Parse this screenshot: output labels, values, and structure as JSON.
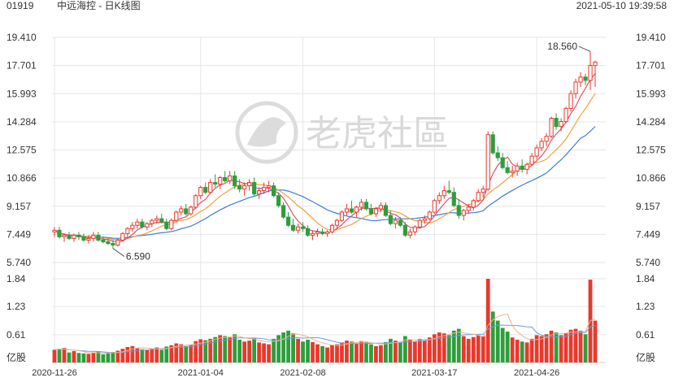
{
  "header": {
    "code": "01919",
    "title": "中远海控 - 日K线图",
    "timestamp": "2021-05-10 19:39:58"
  },
  "watermark": {
    "text": "老虎社區"
  },
  "colors": {
    "up": "#e8392c",
    "down": "#2e9e3c",
    "ma5": "#e0506e",
    "ma10": "#f0a23c",
    "ma20": "#3b7dd8",
    "grid": "#e6e6e6",
    "vol_ma": "#f2b08a"
  },
  "chart_data": {
    "type": "candlestick",
    "price_axis": {
      "ticks": [
        "19.410",
        "17.701",
        "15.993",
        "14.284",
        "12.575",
        "10.866",
        "9.157",
        "7.449",
        "5.740"
      ],
      "range": [
        5.74,
        19.41
      ]
    },
    "volume_axis": {
      "ticks": [
        "1.84",
        "1.23",
        "0.61"
      ],
      "unit": "亿股",
      "range": [
        0,
        1.84
      ]
    },
    "date_labels": [
      "2020-11-26",
      "2021-01-04",
      "2021-02-08",
      "2021-03-17",
      "2021-04-26"
    ],
    "annotations": {
      "high": "18.560",
      "low": "6.590"
    },
    "candles": [
      [
        7.6,
        7.9,
        7.3,
        7.7,
        0.28,
        "2020-11-26"
      ],
      [
        7.7,
        7.9,
        7.2,
        7.3,
        0.3,
        ""
      ],
      [
        7.3,
        7.5,
        7.0,
        7.4,
        0.32,
        ""
      ],
      [
        7.4,
        7.6,
        7.1,
        7.2,
        0.22,
        ""
      ],
      [
        7.2,
        7.5,
        7.0,
        7.4,
        0.25,
        ""
      ],
      [
        7.4,
        7.6,
        7.1,
        7.3,
        0.21,
        ""
      ],
      [
        7.3,
        7.5,
        7.0,
        7.1,
        0.2,
        ""
      ],
      [
        7.1,
        7.4,
        6.9,
        7.2,
        0.19,
        ""
      ],
      [
        7.2,
        7.6,
        7.0,
        7.4,
        0.22,
        ""
      ],
      [
        7.4,
        7.6,
        7.0,
        7.1,
        0.24,
        ""
      ],
      [
        7.1,
        7.3,
        6.9,
        7.0,
        0.18,
        ""
      ],
      [
        7.0,
        7.2,
        6.8,
        6.9,
        0.2,
        ""
      ],
      [
        6.9,
        7.1,
        6.6,
        6.8,
        0.23,
        ""
      ],
      [
        6.8,
        7.2,
        6.7,
        7.1,
        0.26,
        ""
      ],
      [
        7.1,
        7.6,
        7.0,
        7.5,
        0.3,
        ""
      ],
      [
        7.5,
        7.9,
        7.3,
        7.8,
        0.34,
        ""
      ],
      [
        7.8,
        8.2,
        7.6,
        8.0,
        0.36,
        ""
      ],
      [
        8.0,
        8.4,
        7.8,
        8.2,
        0.32,
        ""
      ],
      [
        8.2,
        8.4,
        7.8,
        7.9,
        0.29,
        ""
      ],
      [
        7.9,
        8.2,
        7.7,
        8.1,
        0.27,
        ""
      ],
      [
        8.1,
        8.4,
        7.9,
        8.3,
        0.3,
        ""
      ],
      [
        8.3,
        8.6,
        8.1,
        8.4,
        0.33,
        ""
      ],
      [
        8.4,
        8.7,
        8.1,
        8.2,
        0.28,
        ""
      ],
      [
        8.2,
        8.4,
        7.7,
        7.8,
        0.35,
        ""
      ],
      [
        7.8,
        8.4,
        7.7,
        8.3,
        0.38,
        ""
      ],
      [
        8.3,
        8.9,
        8.2,
        8.8,
        0.42,
        ""
      ],
      [
        8.8,
        9.2,
        8.6,
        9.0,
        0.4,
        ""
      ],
      [
        9.0,
        9.3,
        8.6,
        8.7,
        0.36,
        ""
      ],
      [
        8.7,
        9.2,
        8.6,
        9.1,
        0.39,
        ""
      ],
      [
        9.1,
        9.9,
        9.0,
        9.8,
        0.47,
        ""
      ],
      [
        9.8,
        10.4,
        9.6,
        10.3,
        0.51,
        "2021-01-04"
      ],
      [
        10.3,
        10.6,
        9.9,
        10.0,
        0.49,
        ""
      ],
      [
        10.0,
        10.8,
        9.9,
        10.6,
        0.52,
        ""
      ],
      [
        10.6,
        11.1,
        10.3,
        10.5,
        0.56,
        ""
      ],
      [
        10.5,
        11.0,
        10.2,
        10.9,
        0.6,
        ""
      ],
      [
        10.9,
        11.3,
        10.6,
        10.7,
        0.58,
        ""
      ],
      [
        10.7,
        11.3,
        10.5,
        11.0,
        0.55,
        ""
      ],
      [
        11.0,
        11.3,
        10.2,
        10.4,
        0.62,
        ""
      ],
      [
        10.4,
        10.8,
        10.0,
        10.2,
        0.5,
        ""
      ],
      [
        10.2,
        10.6,
        9.8,
        10.4,
        0.46,
        ""
      ],
      [
        10.4,
        10.8,
        10.1,
        10.6,
        0.48,
        ""
      ],
      [
        10.6,
        10.9,
        9.8,
        9.9,
        0.54,
        ""
      ],
      [
        9.9,
        10.3,
        9.6,
        10.1,
        0.44,
        ""
      ],
      [
        10.1,
        10.6,
        9.9,
        10.3,
        0.42,
        ""
      ],
      [
        10.3,
        10.7,
        10.0,
        10.4,
        0.4,
        ""
      ],
      [
        10.4,
        10.6,
        9.7,
        9.8,
        0.52,
        ""
      ],
      [
        9.8,
        10.0,
        9.1,
        9.2,
        0.6,
        ""
      ],
      [
        9.2,
        9.4,
        8.4,
        8.5,
        0.66,
        ""
      ],
      [
        8.5,
        8.8,
        7.9,
        8.0,
        0.7,
        ""
      ],
      [
        8.0,
        8.4,
        7.6,
        7.7,
        0.64,
        ""
      ],
      [
        7.7,
        8.1,
        7.5,
        7.9,
        0.52,
        ""
      ],
      [
        7.9,
        8.2,
        7.6,
        7.8,
        0.46,
        "2021-02-08"
      ],
      [
        7.8,
        8.0,
        7.3,
        7.4,
        0.5,
        ""
      ],
      [
        7.4,
        7.7,
        7.1,
        7.5,
        0.45,
        ""
      ],
      [
        7.5,
        7.8,
        7.3,
        7.6,
        0.4,
        ""
      ],
      [
        7.6,
        7.8,
        7.4,
        7.5,
        0.36,
        ""
      ],
      [
        7.5,
        7.7,
        7.3,
        7.6,
        0.33,
        ""
      ],
      [
        7.6,
        8.1,
        7.5,
        8.0,
        0.38,
        ""
      ],
      [
        8.0,
        8.4,
        7.8,
        8.3,
        0.4,
        ""
      ],
      [
        8.3,
        8.9,
        8.2,
        8.8,
        0.44,
        ""
      ],
      [
        8.8,
        9.3,
        8.6,
        9.0,
        0.48,
        ""
      ],
      [
        9.0,
        9.5,
        8.7,
        8.8,
        0.46,
        ""
      ],
      [
        8.8,
        9.2,
        8.5,
        9.1,
        0.42,
        ""
      ],
      [
        9.1,
        9.6,
        8.9,
        9.4,
        0.47,
        ""
      ],
      [
        9.4,
        9.6,
        8.9,
        9.0,
        0.44,
        ""
      ],
      [
        9.0,
        9.3,
        8.6,
        8.7,
        0.4,
        ""
      ],
      [
        8.7,
        9.1,
        8.5,
        9.0,
        0.36,
        ""
      ],
      [
        9.0,
        9.4,
        8.8,
        9.2,
        0.38,
        ""
      ],
      [
        9.2,
        9.4,
        8.5,
        8.6,
        0.45,
        ""
      ],
      [
        8.6,
        8.9,
        8.0,
        8.1,
        0.52,
        ""
      ],
      [
        8.1,
        8.5,
        7.8,
        8.3,
        0.48,
        ""
      ],
      [
        8.3,
        8.5,
        7.9,
        8.0,
        0.44,
        ""
      ],
      [
        8.0,
        8.2,
        7.3,
        7.4,
        0.58,
        ""
      ],
      [
        7.4,
        7.8,
        7.2,
        7.6,
        0.5,
        ""
      ],
      [
        7.6,
        8.0,
        7.4,
        7.9,
        0.46,
        ""
      ],
      [
        7.9,
        8.4,
        7.8,
        8.3,
        0.52,
        ""
      ],
      [
        8.3,
        8.6,
        8.1,
        8.4,
        0.48,
        ""
      ],
      [
        8.4,
        8.9,
        8.3,
        8.8,
        0.55,
        ""
      ],
      [
        8.8,
        9.6,
        8.7,
        9.5,
        0.62,
        "2021-03-17"
      ],
      [
        9.5,
        10.0,
        9.3,
        9.8,
        0.66,
        ""
      ],
      [
        9.8,
        10.4,
        9.6,
        10.1,
        0.64,
        ""
      ],
      [
        10.1,
        10.7,
        9.9,
        10.0,
        0.6,
        ""
      ],
      [
        10.0,
        10.3,
        9.1,
        9.2,
        0.7,
        ""
      ],
      [
        9.2,
        9.6,
        8.4,
        8.6,
        0.74,
        ""
      ],
      [
        8.6,
        9.0,
        8.3,
        8.9,
        0.58,
        ""
      ],
      [
        8.9,
        9.3,
        8.7,
        9.1,
        0.52,
        ""
      ],
      [
        9.1,
        9.6,
        8.9,
        9.5,
        0.56,
        ""
      ],
      [
        9.5,
        10.2,
        9.4,
        10.0,
        0.6,
        ""
      ],
      [
        10.0,
        10.4,
        9.7,
        10.2,
        0.58,
        ""
      ],
      [
        10.2,
        13.7,
        10.1,
        13.5,
        1.84,
        ""
      ],
      [
        13.5,
        13.7,
        12.3,
        12.4,
        1.12,
        ""
      ],
      [
        12.4,
        12.8,
        11.9,
        12.1,
        0.92,
        ""
      ],
      [
        12.1,
        12.4,
        11.4,
        11.5,
        0.76,
        ""
      ],
      [
        11.5,
        11.9,
        11.1,
        11.2,
        0.68,
        ""
      ],
      [
        11.2,
        11.6,
        10.9,
        11.3,
        0.55,
        ""
      ],
      [
        11.3,
        11.8,
        11.0,
        11.6,
        0.5,
        ""
      ],
      [
        11.6,
        12.0,
        11.2,
        11.4,
        0.46,
        ""
      ],
      [
        11.4,
        11.8,
        11.1,
        11.7,
        0.44,
        ""
      ],
      [
        11.7,
        12.4,
        11.6,
        12.2,
        0.52,
        ""
      ],
      [
        12.2,
        12.9,
        12.0,
        12.7,
        0.6,
        "2021-04-26"
      ],
      [
        12.7,
        13.3,
        12.5,
        13.1,
        0.58,
        ""
      ],
      [
        13.1,
        13.6,
        12.8,
        13.4,
        0.62,
        ""
      ],
      [
        13.4,
        14.6,
        13.3,
        14.5,
        0.7,
        ""
      ],
      [
        14.5,
        14.8,
        13.8,
        14.0,
        0.66,
        ""
      ],
      [
        14.0,
        14.5,
        13.7,
        14.3,
        0.6,
        ""
      ],
      [
        14.3,
        15.2,
        14.2,
        15.1,
        0.64,
        ""
      ],
      [
        15.1,
        16.2,
        14.9,
        16.0,
        0.72,
        ""
      ],
      [
        16.0,
        16.9,
        15.7,
        16.7,
        0.74,
        ""
      ],
      [
        16.7,
        17.3,
        16.4,
        17.0,
        0.7,
        ""
      ],
      [
        17.0,
        17.2,
        16.5,
        16.8,
        0.62,
        ""
      ],
      [
        16.8,
        18.56,
        16.2,
        17.7,
        1.82,
        ""
      ],
      [
        17.7,
        18.0,
        16.4,
        17.9,
        0.92,
        ""
      ]
    ]
  }
}
